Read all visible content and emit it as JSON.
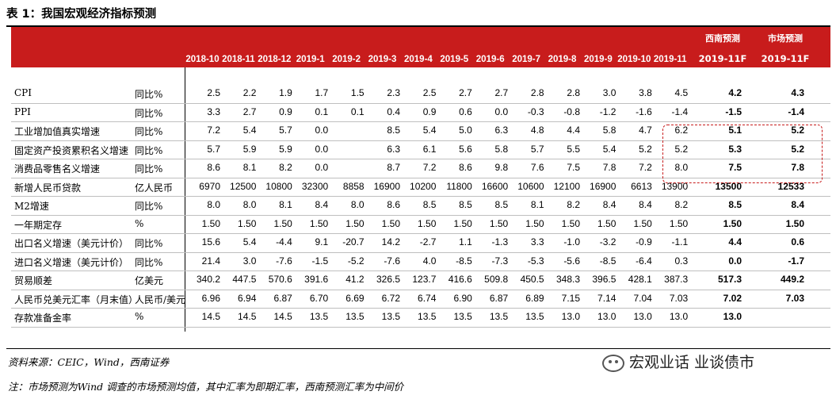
{
  "title": "表 1：我国宏观经济指标预测",
  "columns": [
    "2018-10",
    "2018-11",
    "2018-12",
    "2019-1",
    "2019-2",
    "2019-3",
    "2019-4",
    "2019-5",
    "2019-6",
    "2019-7",
    "2019-8",
    "2019-9",
    "2019-10",
    "2019-11"
  ],
  "forecast_headers": [
    {
      "top": "西南预测",
      "bottom": "2019-11F"
    },
    {
      "top": "市场预测",
      "bottom": "2019-11F"
    }
  ],
  "rows": [
    {
      "label": "CPI",
      "unit": "同比%",
      "values": [
        "2.5",
        "2.2",
        "1.9",
        "1.7",
        "1.5",
        "2.3",
        "2.5",
        "2.7",
        "2.7",
        "2.8",
        "2.8",
        "3.0",
        "3.8",
        "4.5"
      ],
      "forecast": [
        "4.2",
        "4.3"
      ]
    },
    {
      "label": "PPI",
      "unit": "同比%",
      "values": [
        "3.3",
        "2.7",
        "0.9",
        "0.1",
        "0.1",
        "0.4",
        "0.9",
        "0.6",
        "0.0",
        "-0.3",
        "-0.8",
        "-1.2",
        "-1.6",
        "-1.4"
      ],
      "forecast": [
        "-1.5",
        "-1.4"
      ]
    },
    {
      "label": "工业增加值真实增速",
      "unit": "同比%",
      "values": [
        "7.2",
        "5.4",
        "5.7",
        "0.0",
        "",
        "8.5",
        "5.4",
        "5.0",
        "6.3",
        "4.8",
        "4.4",
        "5.8",
        "4.7",
        "6.2"
      ],
      "forecast": [
        "5.1",
        "5.2"
      ]
    },
    {
      "label": "固定资产投资累积名义增速",
      "unit": "同比%",
      "values": [
        "5.7",
        "5.9",
        "5.9",
        "0.0",
        "",
        "6.3",
        "6.1",
        "5.6",
        "5.8",
        "5.7",
        "5.5",
        "5.4",
        "5.2",
        "5.2"
      ],
      "forecast": [
        "5.3",
        "5.2"
      ]
    },
    {
      "label": "消费品零售名义增速",
      "unit": "同比%",
      "values": [
        "8.6",
        "8.1",
        "8.2",
        "0.0",
        "",
        "8.7",
        "7.2",
        "8.6",
        "9.8",
        "7.6",
        "7.5",
        "7.8",
        "7.2",
        "8.0"
      ],
      "forecast": [
        "7.5",
        "7.8"
      ]
    },
    {
      "label": "新增人民币贷款",
      "unit": "亿人民币",
      "values": [
        "6970",
        "12500",
        "10800",
        "32300",
        "8858",
        "16900",
        "10200",
        "11800",
        "16600",
        "10600",
        "12100",
        "16900",
        "6613",
        "13900"
      ],
      "forecast": [
        "13500",
        "12533"
      ]
    },
    {
      "label": "M2增速",
      "unit": "同比%",
      "values": [
        "8.0",
        "8.0",
        "8.1",
        "8.4",
        "8.0",
        "8.6",
        "8.5",
        "8.5",
        "8.5",
        "8.1",
        "8.2",
        "8.4",
        "8.4",
        "8.2"
      ],
      "forecast": [
        "8.5",
        "8.4"
      ]
    },
    {
      "label": "一年期定存",
      "unit": "%",
      "values": [
        "1.50",
        "1.50",
        "1.50",
        "1.50",
        "1.50",
        "1.50",
        "1.50",
        "1.50",
        "1.50",
        "1.50",
        "1.50",
        "1.50",
        "1.50",
        "1.50"
      ],
      "forecast": [
        "1.50",
        "1.50"
      ]
    },
    {
      "label": "出口名义增速（美元计价）",
      "unit": "同比%",
      "values": [
        "15.6",
        "5.4",
        "-4.4",
        "9.1",
        "-20.7",
        "14.2",
        "-2.7",
        "1.1",
        "-1.3",
        "3.3",
        "-1.0",
        "-3.2",
        "-0.9",
        "-1.1"
      ],
      "forecast": [
        "4.4",
        "0.6"
      ]
    },
    {
      "label": "进口名义增速（美元计价）",
      "unit": "同比%",
      "values": [
        "21.4",
        "3.0",
        "-7.6",
        "-1.5",
        "-5.2",
        "-7.6",
        "4.0",
        "-8.5",
        "-7.3",
        "-5.3",
        "-5.6",
        "-8.5",
        "-6.4",
        "0.3"
      ],
      "forecast": [
        "0.0",
        "-1.7"
      ]
    },
    {
      "label": "贸易顺差",
      "unit": "亿美元",
      "values": [
        "340.2",
        "447.5",
        "570.6",
        "391.6",
        "41.2",
        "326.5",
        "123.7",
        "416.6",
        "509.8",
        "450.5",
        "348.3",
        "396.5",
        "428.1",
        "387.3"
      ],
      "forecast": [
        "517.3",
        "449.2"
      ]
    },
    {
      "label": "人民币兑美元汇率（月末值）",
      "unit": "人民币/美元",
      "values": [
        "6.96",
        "6.94",
        "6.87",
        "6.70",
        "6.69",
        "6.72",
        "6.74",
        "6.90",
        "6.87",
        "6.89",
        "7.15",
        "7.14",
        "7.04",
        "7.03"
      ],
      "forecast": [
        "7.02",
        "7.03"
      ]
    },
    {
      "label": "存款准备金率",
      "unit": "%",
      "values": [
        "14.5",
        "14.5",
        "14.5",
        "13.5",
        "13.5",
        "13.5",
        "13.5",
        "13.5",
        "13.5",
        "13.5",
        "13.0",
        "13.0",
        "13.0",
        "13.0"
      ],
      "forecast": [
        "13.0",
        ""
      ]
    }
  ],
  "source": "资料来源：CEIC，Wind，西南证券",
  "note": "注：市场预测为Wind 调查的市场预测均值，其中汇率为即期汇率，西南预测汇率为中间价",
  "watermark": "宏观业话 业谈债市",
  "colors": {
    "header_bg": "#c81c1c",
    "highlight_border": "#c81c1c"
  }
}
